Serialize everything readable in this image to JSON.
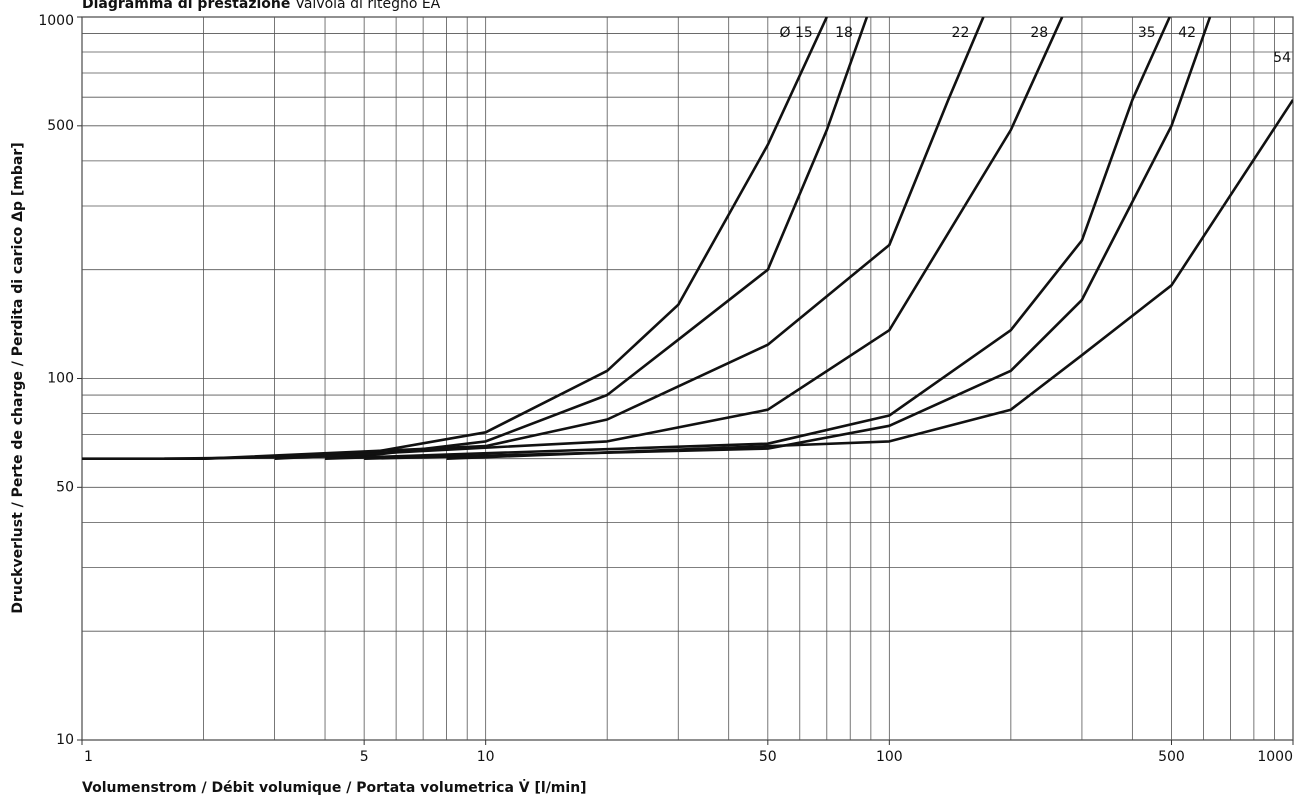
{
  "chart_data": {
    "type": "line",
    "title": "Diagramma di prestazione",
    "subtitle": "Valvola di ritegno EA",
    "x_label": "Volumenstrom / Débit volumique / Portata volumetrica   V̇ [l/min]",
    "y_label": "Druckverlust / Perte de charge / Perdita di carico   Δp [mbar]",
    "xscale": "log",
    "yscale": "log",
    "xlim": [
      1,
      1000
    ],
    "ylim": [
      10,
      1000
    ],
    "xticks": [
      1,
      5,
      10,
      50,
      100,
      500,
      1000
    ],
    "yticks": [
      10,
      50,
      100,
      500,
      1000
    ],
    "xminor_ticks": [
      2,
      3,
      4,
      6,
      7,
      8,
      9,
      20,
      30,
      40,
      60,
      70,
      80,
      90,
      200,
      300,
      400,
      600,
      700,
      800,
      900
    ],
    "yminor_ticks": [
      20,
      30,
      40,
      60,
      70,
      80,
      90,
      200,
      300,
      400,
      600,
      700,
      800,
      900
    ],
    "grid": true,
    "color": "#111111",
    "series": [
      {
        "name": "Ø 15",
        "x": [
          1,
          2,
          5,
          10,
          20,
          30,
          50,
          70
        ],
        "values": [
          60,
          60,
          62,
          71,
          105,
          160,
          443,
          1000
        ]
      },
      {
        "name": "18",
        "x": [
          1.6,
          5,
          10,
          20,
          30,
          50,
          70,
          88
        ],
        "values": [
          60,
          61,
          67,
          90,
          128,
          200,
          487,
          1000
        ]
      },
      {
        "name": "22",
        "x": [
          2,
          10,
          20,
          50,
          100,
          140,
          171
        ],
        "values": [
          60,
          65,
          77,
          124,
          234,
          590,
          1000
        ]
      },
      {
        "name": "28",
        "x": [
          3,
          20,
          50,
          100,
          200,
          268
        ],
        "values": [
          60,
          67,
          82,
          136,
          487,
          1000
        ]
      },
      {
        "name": "35",
        "x": [
          4,
          50,
          100,
          200,
          300,
          400,
          495
        ],
        "values": [
          60,
          66,
          79,
          136,
          241,
          590,
          1000
        ]
      },
      {
        "name": "42",
        "x": [
          5,
          50,
          100,
          200,
          300,
          500,
          623
        ],
        "values": [
          60,
          64,
          74,
          105,
          165,
          500,
          1000
        ]
      },
      {
        "name": "54",
        "x": [
          8,
          100,
          200,
          300,
          500,
          1000
        ],
        "values": [
          60,
          67,
          82,
          116,
          181,
          590
        ]
      }
    ]
  }
}
